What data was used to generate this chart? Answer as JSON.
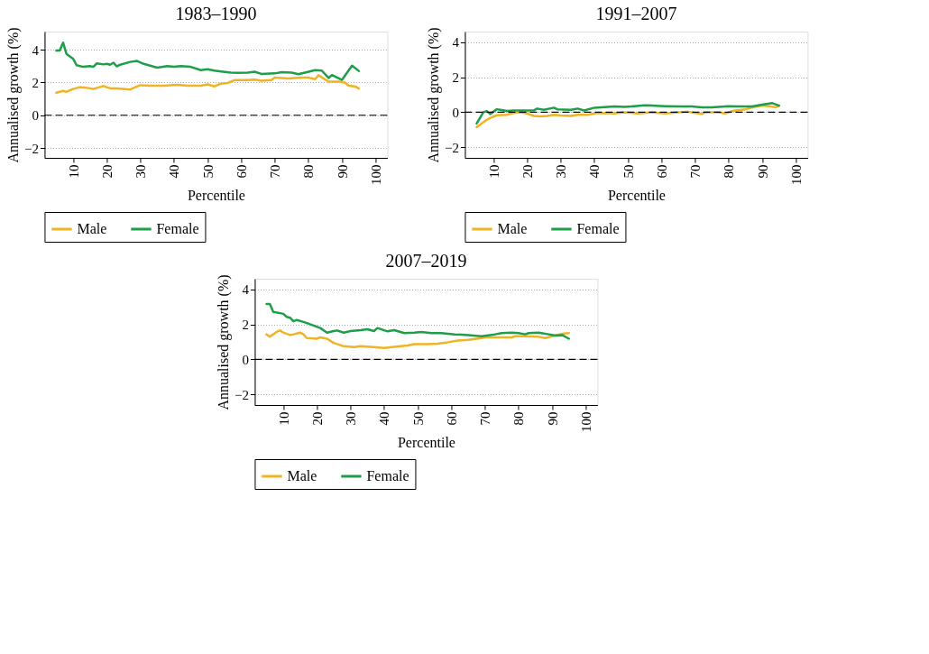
{
  "chart_data": [
    {
      "type": "line",
      "title": "1983–1990",
      "xlabel": "Percentile",
      "ylabel": "Annualised growth (%)",
      "xlim": [
        1.5,
        103.5
      ],
      "xticks": [
        10,
        20,
        30,
        40,
        50,
        60,
        70,
        80,
        90,
        100
      ],
      "ylim": [
        -2.6,
        5.1
      ],
      "yticks": [
        -2,
        0,
        2,
        4
      ],
      "grid": "y",
      "legend": "bottom",
      "line_style": "solid",
      "ref_lines": [
        {
          "axis": "y",
          "value": 0,
          "color": "#000000",
          "line_style": "dashed"
        }
      ],
      "series": [
        {
          "name": "Male",
          "color": "#f0b323",
          "x": [
            5,
            7,
            8,
            9,
            10,
            12,
            14,
            16,
            19,
            21,
            23,
            27,
            29,
            30,
            33,
            37,
            41,
            44,
            48,
            50,
            52,
            54,
            56,
            58,
            62,
            64,
            66,
            69,
            70,
            74,
            78,
            80,
            82,
            83,
            86,
            89,
            91,
            92,
            94,
            95
          ],
          "values": [
            1.37,
            1.48,
            1.42,
            1.52,
            1.6,
            1.71,
            1.67,
            1.6,
            1.78,
            1.64,
            1.64,
            1.57,
            1.75,
            1.83,
            1.8,
            1.8,
            1.86,
            1.8,
            1.8,
            1.88,
            1.76,
            1.93,
            1.97,
            2.14,
            2.14,
            2.17,
            2.1,
            2.14,
            2.29,
            2.24,
            2.29,
            2.29,
            2.2,
            2.44,
            2.05,
            2.05,
            1.98,
            1.8,
            1.75,
            1.63
          ]
        },
        {
          "name": "Female",
          "color": "#1f9e4a",
          "x": [
            5,
            6,
            7,
            8,
            10,
            11,
            13,
            15,
            16,
            17,
            19,
            20,
            21,
            22,
            23,
            24,
            27,
            29,
            31,
            35,
            38,
            40,
            42,
            45,
            48,
            50,
            52,
            54,
            57,
            59,
            62,
            64,
            66,
            70,
            72,
            75,
            77,
            79,
            82,
            84,
            86,
            87,
            90,
            91,
            93,
            95
          ],
          "values": [
            3.94,
            3.95,
            4.43,
            3.74,
            3.44,
            3.05,
            2.95,
            3.0,
            2.95,
            3.16,
            3.1,
            3.13,
            3.08,
            3.2,
            2.98,
            3.08,
            3.25,
            3.31,
            3.13,
            2.9,
            3.0,
            2.95,
            3.0,
            2.95,
            2.75,
            2.8,
            2.72,
            2.67,
            2.6,
            2.58,
            2.6,
            2.65,
            2.52,
            2.55,
            2.63,
            2.6,
            2.5,
            2.6,
            2.75,
            2.72,
            2.27,
            2.45,
            2.15,
            2.45,
            3.02,
            2.7
          ]
        }
      ]
    },
    {
      "type": "line",
      "title": "1991–2007",
      "xlabel": "Percentile",
      "ylabel": "Annualised growth (%)",
      "xlim": [
        1.5,
        103.5
      ],
      "xticks": [
        10,
        20,
        30,
        40,
        50,
        60,
        70,
        80,
        90,
        100
      ],
      "ylim": [
        -2.6,
        4.6
      ],
      "yticks": [
        -2,
        0,
        2,
        4
      ],
      "grid": "y",
      "legend": "bottom",
      "line_style": "solid",
      "ref_lines": [
        {
          "axis": "y",
          "value": 0,
          "color": "#000000",
          "line_style": "dashed"
        }
      ],
      "series": [
        {
          "name": "Male",
          "color": "#f0b323",
          "x": [
            5,
            7,
            8,
            9,
            11,
            14,
            16,
            18,
            20,
            22,
            24,
            26,
            28,
            30,
            33,
            35,
            38,
            41,
            46,
            49,
            53,
            57,
            61,
            65,
            68,
            70,
            72,
            73,
            77,
            79,
            81,
            85,
            87,
            90,
            92,
            94,
            95
          ],
          "values": [
            -0.85,
            -0.57,
            -0.43,
            -0.33,
            -0.17,
            -0.14,
            -0.04,
            0.0,
            -0.07,
            -0.21,
            -0.24,
            -0.21,
            -0.14,
            -0.18,
            -0.21,
            -0.14,
            -0.14,
            -0.04,
            -0.07,
            0.0,
            -0.07,
            0.0,
            -0.07,
            0.0,
            0.03,
            -0.04,
            -0.1,
            0.0,
            0.0,
            -0.07,
            0.07,
            0.17,
            0.28,
            0.38,
            0.35,
            0.28,
            0.38
          ]
        },
        {
          "name": "Female",
          "color": "#1f9e4a",
          "x": [
            5,
            7,
            8,
            9,
            11,
            12,
            14,
            16,
            20,
            22,
            23,
            25,
            28,
            29,
            33,
            35,
            37,
            40,
            42,
            46,
            49,
            51,
            55,
            57,
            61,
            65,
            69,
            72,
            75,
            80,
            83,
            87,
            90,
            93,
            95
          ],
          "values": [
            -0.64,
            0.0,
            0.07,
            -0.1,
            0.17,
            0.14,
            0.07,
            0.1,
            0.1,
            0.11,
            0.21,
            0.14,
            0.26,
            0.17,
            0.14,
            0.21,
            0.1,
            0.26,
            0.28,
            0.33,
            0.31,
            0.33,
            0.4,
            0.38,
            0.35,
            0.33,
            0.33,
            0.28,
            0.28,
            0.35,
            0.33,
            0.33,
            0.43,
            0.52,
            0.38
          ]
        }
      ]
    },
    {
      "type": "line",
      "title": "2007–2019",
      "xlabel": "Percentile",
      "ylabel": "Annualised growth (%)",
      "xlim": [
        1.5,
        103.5
      ],
      "xticks": [
        10,
        20,
        30,
        40,
        50,
        60,
        70,
        80,
        90,
        100
      ],
      "ylim": [
        -2.6,
        4.6
      ],
      "yticks": [
        -2,
        0,
        2,
        4
      ],
      "grid": "y",
      "legend": "bottom",
      "line_style": "solid",
      "ref_lines": [
        {
          "axis": "y",
          "value": 0,
          "color": "#000000",
          "line_style": "dashed"
        }
      ],
      "series": [
        {
          "name": "Male",
          "color": "#f0b323",
          "x": [
            5,
            6,
            8,
            9,
            10,
            12,
            13,
            15,
            16,
            17,
            20,
            21,
            23,
            25,
            28,
            31,
            33,
            36,
            40,
            43,
            47,
            49,
            53,
            56,
            59,
            62,
            65,
            69,
            70,
            73,
            78,
            79,
            82,
            86,
            88,
            90,
            93,
            95
          ],
          "values": [
            1.43,
            1.29,
            1.57,
            1.65,
            1.53,
            1.39,
            1.43,
            1.53,
            1.43,
            1.22,
            1.18,
            1.26,
            1.18,
            0.94,
            0.75,
            0.7,
            0.75,
            0.72,
            0.65,
            0.72,
            0.79,
            0.87,
            0.87,
            0.9,
            0.98,
            1.08,
            1.12,
            1.22,
            1.26,
            1.26,
            1.26,
            1.32,
            1.32,
            1.29,
            1.22,
            1.32,
            1.46,
            1.5
          ]
        },
        {
          "name": "Female",
          "color": "#1f9e4a",
          "x": [
            5,
            6,
            7,
            9,
            10,
            11,
            12,
            13,
            14,
            16,
            17,
            19,
            21,
            23,
            25,
            26,
            28,
            30,
            33,
            35,
            37,
            38,
            41,
            43,
            46,
            49,
            51,
            54,
            57,
            61,
            65,
            69,
            73,
            75,
            78,
            80,
            82,
            83,
            86,
            89,
            91,
            93,
            95
          ],
          "values": [
            3.16,
            3.16,
            2.71,
            2.64,
            2.6,
            2.43,
            2.38,
            2.18,
            2.25,
            2.14,
            2.07,
            1.93,
            1.79,
            1.53,
            1.62,
            1.65,
            1.53,
            1.62,
            1.67,
            1.72,
            1.62,
            1.79,
            1.6,
            1.67,
            1.5,
            1.53,
            1.57,
            1.5,
            1.5,
            1.43,
            1.39,
            1.32,
            1.43,
            1.5,
            1.53,
            1.5,
            1.43,
            1.5,
            1.53,
            1.43,
            1.36,
            1.39,
            1.18
          ]
        }
      ]
    }
  ]
}
